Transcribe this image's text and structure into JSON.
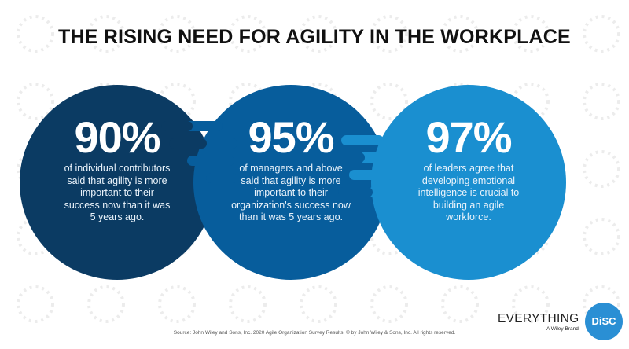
{
  "title": "THE RISING NEED FOR AGILITY IN THE WORKPLACE",
  "stats": [
    {
      "percent": "90%",
      "lines": [
        "of individual contributors",
        "said that agility is more",
        "important to their",
        "success now than it was",
        "5 years ago."
      ],
      "color": "#0b3b63"
    },
    {
      "percent": "95%",
      "lines": [
        "of managers and above",
        "said that agility is more",
        "important to their",
        "organization's success now",
        "than it was 5 years ago."
      ],
      "color": "#075d9c"
    },
    {
      "percent": "97%",
      "lines": [
        "of leaders agree that",
        "developing emotional",
        "intelligence is crucial to",
        "building an agile",
        "workforce."
      ],
      "color": "#1a8fd0"
    }
  ],
  "source": "Source: John Wiley and Sons, Inc. 2020 Agile Organization Survey Results. © by John Wiley & Sons, Inc. All rights reserved.",
  "logo": {
    "wordmark": "EVERYTHING",
    "badge": "DiSC",
    "tagline": "A Wiley Brand"
  }
}
